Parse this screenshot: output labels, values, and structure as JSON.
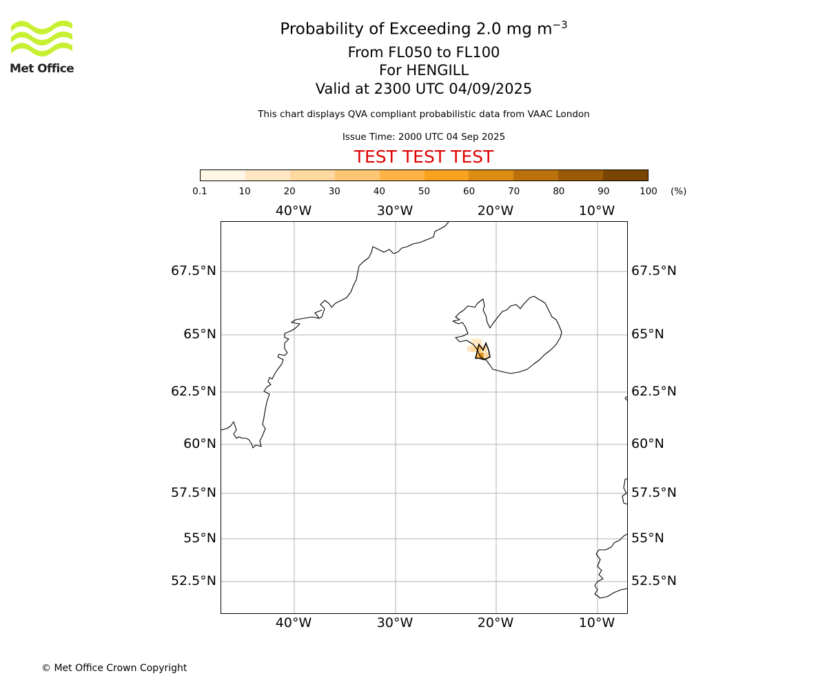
{
  "logo": {
    "text": "Met Office",
    "color": "#c8f032"
  },
  "header": {
    "title_main": "Probability of Exceeding 2.0 mg m",
    "title_sup": "−3",
    "flight_levels": "From FL050 to FL100",
    "volcano": "For HENGILL",
    "valid_time": "Valid at 2300 UTC 04/09/2025",
    "note": "This chart displays QVA compliant probabilistic data from VAAC London",
    "issue_time": "Issue Time: 2000 UTC 04 Sep 2025",
    "test_banner": "TEST TEST TEST",
    "test_color": "#e00000"
  },
  "colorbar": {
    "ticks": [
      "0.1",
      "10",
      "20",
      "30",
      "40",
      "50",
      "60",
      "70",
      "80",
      "90",
      "100"
    ],
    "unit": "(%)",
    "colors": [
      "#fff6e6",
      "#ffe7c4",
      "#ffd9a0",
      "#ffc773",
      "#ffb347",
      "#f9a21f",
      "#dc8b13",
      "#bc720c",
      "#9b5a06",
      "#7a4503"
    ]
  },
  "map": {
    "lon_labels": [
      "40°W",
      "30°W",
      "20°W",
      "10°W"
    ],
    "lat_labels": [
      "67.5°N",
      "65°N",
      "62.5°N",
      "60°N",
      "57.5°N",
      "55°N",
      "52.5°N"
    ],
    "grid_color": "#b0b0b0",
    "coast_color": "#000000",
    "plume": {
      "location": "Hengill, SW Iceland",
      "cells": [
        {
          "lon": -22.6,
          "lat": 64.4,
          "prob_pct": 15
        },
        {
          "lon": -22.2,
          "lat": 64.4,
          "prob_pct": 25
        },
        {
          "lon": -21.7,
          "lat": 64.4,
          "prob_pct": 35
        },
        {
          "lon": -21.2,
          "lat": 64.4,
          "prob_pct": 20
        },
        {
          "lon": -22.2,
          "lat": 64.7,
          "prob_pct": 12
        },
        {
          "lon": -21.7,
          "lat": 64.7,
          "prob_pct": 15
        },
        {
          "lon": -21.7,
          "lat": 64.1,
          "prob_pct": 45
        },
        {
          "lon": -21.3,
          "lat": 64.1,
          "prob_pct": 60
        },
        {
          "lon": -21.0,
          "lat": 64.1,
          "prob_pct": 20
        }
      ]
    }
  },
  "footer": {
    "copyright": "© Met Office Crown Copyright"
  }
}
